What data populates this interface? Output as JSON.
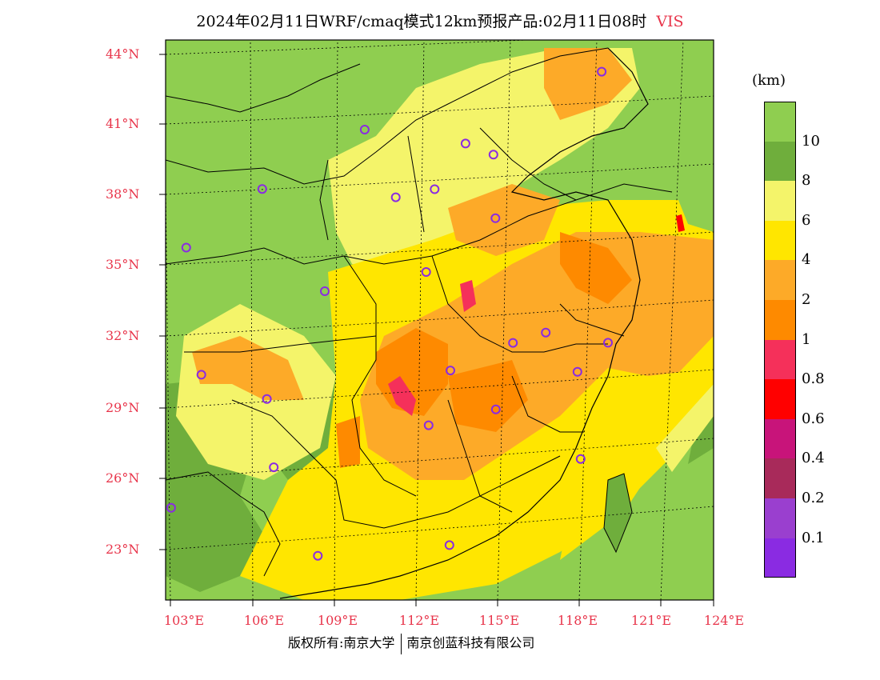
{
  "title": {
    "main": "2024年02月11日WRF/cmaq模式12km预报产品:02月11日08时",
    "variable": "VIS"
  },
  "axes": {
    "lat_labels": [
      "44°N",
      "41°N",
      "38°N",
      "35°N",
      "32°N",
      "29°N",
      "26°N",
      "23°N"
    ],
    "lon_labels": [
      "103°E",
      "106°E",
      "109°E",
      "112°E",
      "115°E",
      "118°E",
      "121°E",
      "124°E"
    ]
  },
  "legend": {
    "unit": "(km)",
    "labels": [
      "10",
      "8",
      "6",
      "4",
      "2",
      "1",
      "0.8",
      "0.6",
      "0.4",
      "0.2",
      "0.1"
    ],
    "colors": [
      "#8fce50",
      "#6fae3c",
      "#f4f46a",
      "#ffe600",
      "#fdaa28",
      "#fe8a00",
      "#f5305a",
      "#ff0000",
      "#c8147a",
      "#a82a5a",
      "#9a3fcf",
      "#8a2be2"
    ]
  },
  "stations": [
    {
      "lon": 118.6,
      "lat": 43.0
    },
    {
      "lon": 110.2,
      "lat": 40.8
    },
    {
      "lon": 113.8,
      "lat": 40.1
    },
    {
      "lon": 114.8,
      "lat": 39.6
    },
    {
      "lon": 106.5,
      "lat": 38.4
    },
    {
      "lon": 111.3,
      "lat": 37.9
    },
    {
      "lon": 112.7,
      "lat": 38.2
    },
    {
      "lon": 114.9,
      "lat": 36.9
    },
    {
      "lon": 103.7,
      "lat": 36.0
    },
    {
      "lon": 112.4,
      "lat": 34.7
    },
    {
      "lon": 108.7,
      "lat": 34.0
    },
    {
      "lon": 116.8,
      "lat": 32.0
    },
    {
      "lon": 115.6,
      "lat": 31.6
    },
    {
      "lon": 119.1,
      "lat": 31.5
    },
    {
      "lon": 104.1,
      "lat": 30.6
    },
    {
      "lon": 113.3,
      "lat": 30.5
    },
    {
      "lon": 118.0,
      "lat": 30.3
    },
    {
      "lon": 106.5,
      "lat": 29.5
    },
    {
      "lon": 115.0,
      "lat": 28.8
    },
    {
      "lon": 112.5,
      "lat": 28.2
    },
    {
      "lon": 106.7,
      "lat": 26.6
    },
    {
      "lon": 118.2,
      "lat": 26.6
    },
    {
      "lon": 102.8,
      "lat": 25.0
    },
    {
      "lon": 108.3,
      "lat": 22.8
    },
    {
      "lon": 113.3,
      "lat": 23.1
    }
  ],
  "footer": {
    "left": "版权所有:南京大学",
    "right": "南京创蓝科技有限公司"
  }
}
